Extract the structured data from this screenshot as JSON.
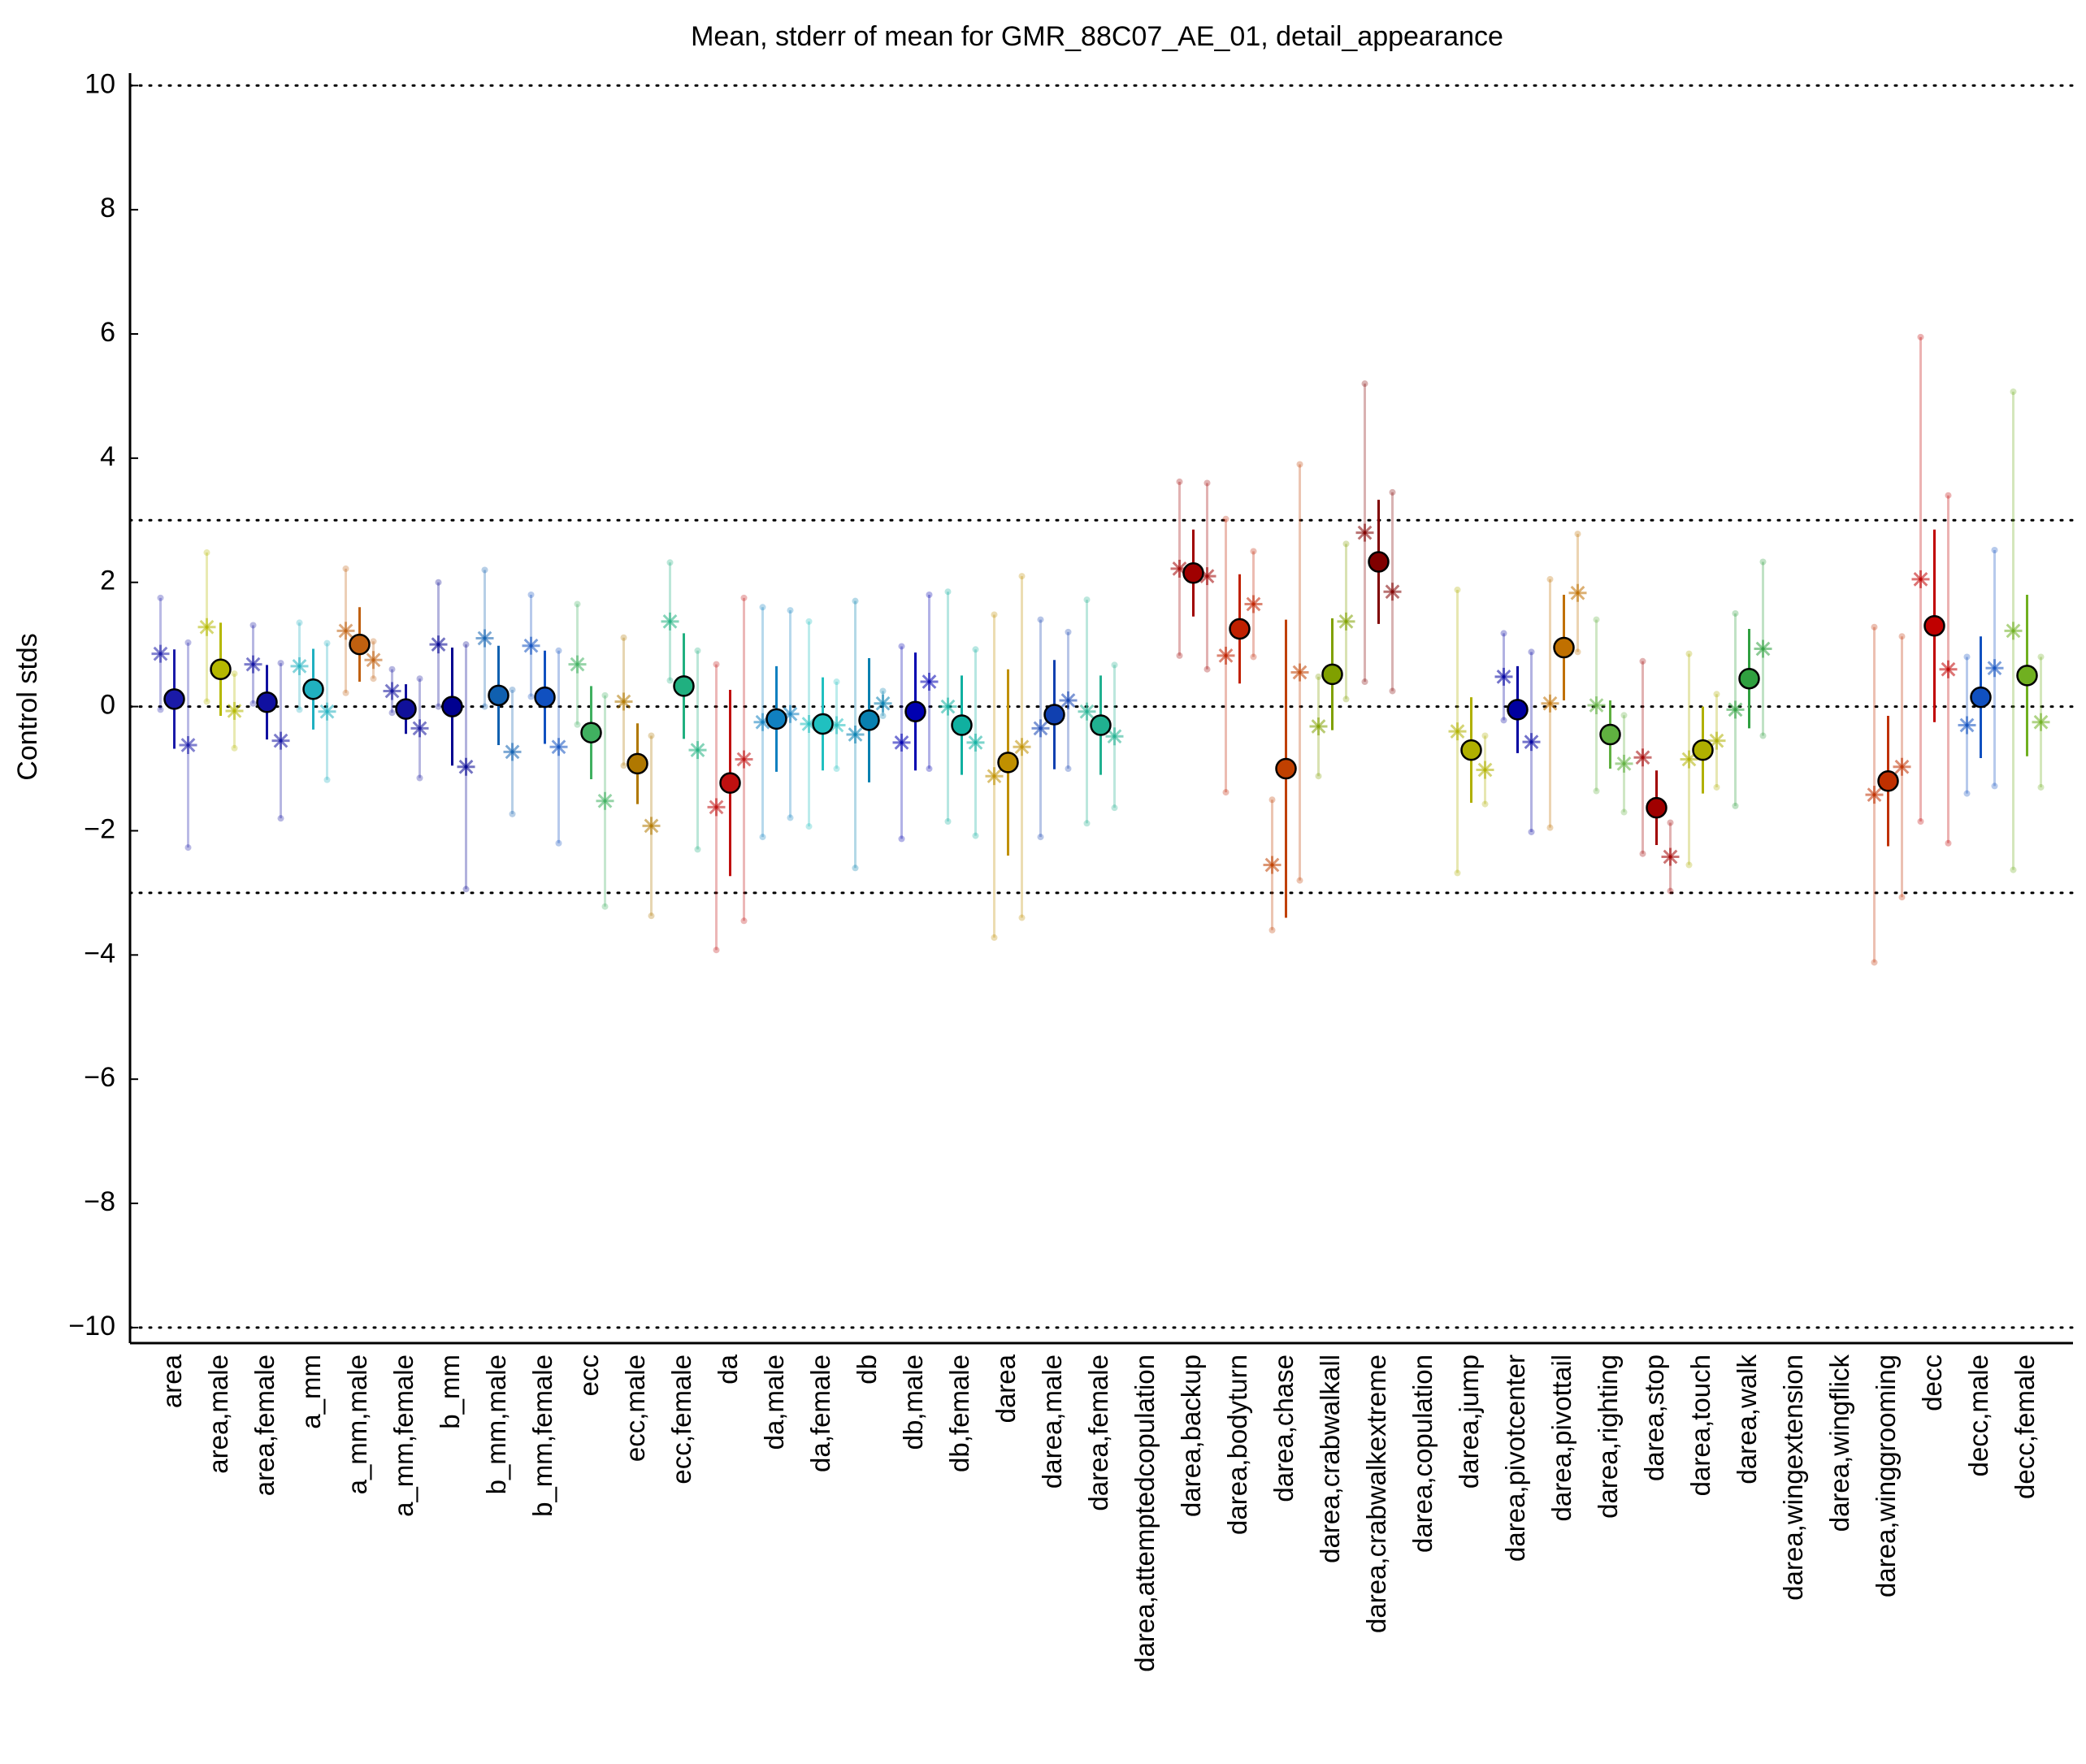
{
  "chart_data": {
    "type": "errorbar",
    "title": "Mean, stderr of mean for GMR_88C07_AE_01, detail_appearance",
    "ylabel": "Control stds",
    "categories": [
      "area",
      "area,male",
      "area,female",
      "a_mm",
      "a_mm,male",
      "a_mm,female",
      "b_mm",
      "b_mm,male",
      "b_mm,female",
      "ecc",
      "ecc,male",
      "ecc,female",
      "da",
      "da,male",
      "da,female",
      "db",
      "db,male",
      "db,female",
      "darea",
      "darea,male",
      "darea,female",
      "darea,attemptedcopulation",
      "darea,backup",
      "darea,bodyturn",
      "darea,chase",
      "darea,crabwalkall",
      "darea,crabwalkextreme",
      "darea,copulation",
      "darea,jump",
      "darea,pivotcenter",
      "darea,pivottail",
      "darea,righting",
      "darea,stop",
      "darea,touch",
      "darea,walk",
      "darea,wingextension",
      "darea,wingflick",
      "darea,winggrooming",
      "decc",
      "decc,male",
      "decc,female"
    ],
    "colors": [
      "#1a1aa8",
      "#b5b800",
      "#1010a0",
      "#20b0c0",
      "#c06010",
      "#10109a",
      "#000090",
      "#1060b0",
      "#1050c0",
      "#40b060",
      "#b07800",
      "#20b080",
      "#c01010",
      "#1080c0",
      "#20c0c0",
      "#0880b0",
      "#0000b0",
      "#10b0a0",
      "#c09000",
      "#1040b0",
      "#20b090",
      "#909090",
      "#a00000",
      "#c02000",
      "#c04000",
      "#80a000",
      "#800000",
      "#909090",
      "#b0b000",
      "#0000a0",
      "#c07000",
      "#60b040",
      "#a00000",
      "#b0b000",
      "#30a040",
      "#909090",
      "#909090",
      "#c03000",
      "#c00000",
      "#1050c0",
      "#70b020"
    ],
    "means": [
      0.12,
      0.6,
      0.07,
      0.28,
      1.0,
      -0.04,
      0.0,
      0.18,
      0.15,
      -0.42,
      -0.92,
      0.33,
      -1.23,
      -0.2,
      -0.28,
      -0.22,
      -0.08,
      -0.3,
      -0.9,
      -0.13,
      -0.3,
      null,
      2.15,
      1.25,
      -1.0,
      0.52,
      2.33,
      null,
      -0.7,
      -0.05,
      0.95,
      -0.45,
      -1.63,
      -0.7,
      0.45,
      null,
      null,
      -1.2,
      1.3,
      0.15,
      0.5
    ],
    "errors": [
      0.8,
      0.75,
      0.6,
      0.65,
      0.6,
      0.4,
      0.95,
      0.8,
      0.75,
      0.75,
      0.65,
      0.85,
      1.5,
      0.85,
      0.75,
      1.0,
      0.95,
      0.8,
      1.5,
      0.88,
      0.8,
      null,
      0.7,
      0.88,
      2.4,
      0.9,
      1.0,
      null,
      0.85,
      0.7,
      0.85,
      0.55,
      0.6,
      0.7,
      0.8,
      null,
      null,
      1.05,
      1.55,
      0.98,
      1.3
    ],
    "left_stars": [
      0.85,
      1.28,
      0.68,
      0.65,
      1.22,
      0.25,
      1.0,
      1.1,
      0.98,
      0.68,
      0.08,
      1.37,
      -1.62,
      -0.25,
      -0.28,
      -0.45,
      -0.58,
      0.0,
      -1.12,
      -0.35,
      -0.08,
      null,
      2.22,
      0.82,
      -2.55,
      -0.32,
      2.8,
      null,
      -0.4,
      0.48,
      0.05,
      0.02,
      -0.82,
      -0.85,
      -0.05,
      null,
      null,
      -1.42,
      2.05,
      -0.3,
      1.22
    ],
    "left_errors": [
      0.9,
      1.2,
      0.63,
      0.7,
      1.0,
      0.35,
      1.0,
      1.1,
      0.82,
      0.97,
      1.03,
      0.95,
      2.3,
      1.85,
      1.65,
      2.15,
      1.55,
      1.85,
      2.6,
      1.75,
      1.8,
      null,
      1.4,
      2.2,
      1.05,
      0.8,
      2.4,
      null,
      2.28,
      0.7,
      2.0,
      1.38,
      1.55,
      1.7,
      1.55,
      null,
      null,
      2.7,
      3.9,
      1.1,
      3.85
    ],
    "right_stars": [
      -0.62,
      -0.07,
      -0.55,
      -0.08,
      0.75,
      -0.35,
      -0.97,
      -0.73,
      -0.65,
      -1.52,
      -1.92,
      -0.7,
      -0.85,
      -0.12,
      -0.3,
      0.05,
      0.4,
      -0.58,
      -0.65,
      0.1,
      -0.48,
      null,
      2.1,
      1.65,
      0.55,
      1.37,
      1.85,
      null,
      -1.02,
      -0.57,
      1.83,
      -0.92,
      -2.42,
      -0.55,
      0.93,
      null,
      null,
      -0.97,
      0.6,
      0.62,
      -0.25
    ],
    "right_errors": [
      1.65,
      0.6,
      1.25,
      1.1,
      0.3,
      0.8,
      1.97,
      1.0,
      1.55,
      1.7,
      1.45,
      1.6,
      2.6,
      1.67,
      0.7,
      0.2,
      1.4,
      1.5,
      2.75,
      1.1,
      1.15,
      null,
      1.5,
      0.85,
      3.35,
      1.25,
      1.6,
      null,
      0.55,
      1.45,
      0.95,
      0.78,
      0.55,
      0.75,
      1.4,
      null,
      null,
      2.1,
      2.8,
      1.9,
      1.05
    ],
    "ylim": [
      -10.25,
      10.2
    ],
    "yticks": [
      {
        "value": -10,
        "label": "−10"
      },
      {
        "value": -8,
        "label": "−8"
      },
      {
        "value": -6,
        "label": "−6"
      },
      {
        "value": -4,
        "label": "−4"
      },
      {
        "value": -2,
        "label": "−2"
      },
      0,
      2,
      4,
      6,
      8,
      10
    ],
    "hlines": [
      10,
      3,
      0,
      -3,
      -10
    ]
  }
}
